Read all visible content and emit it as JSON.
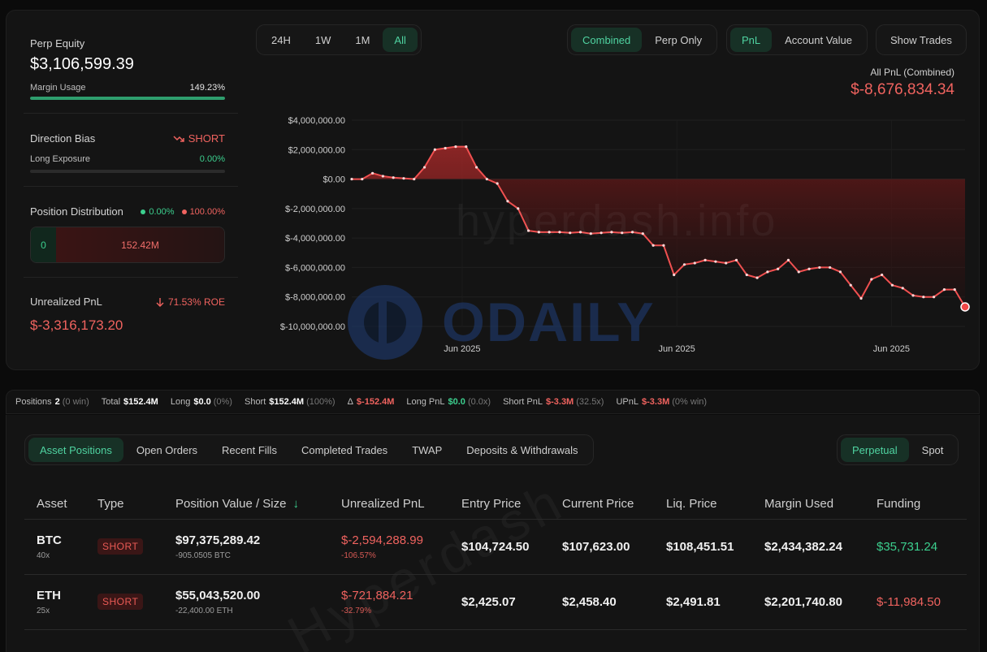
{
  "summary": {
    "perp_equity_label": "Perp Equity",
    "perp_equity_value": "$3,106,599.39",
    "margin_usage_label": "Margin Usage",
    "margin_usage_value": "149.23%",
    "margin_usage_fraction": 1.0,
    "direction_bias_label": "Direction Bias",
    "direction_bias_value": "SHORT",
    "long_exposure_label": "Long Exposure",
    "long_exposure_value": "0.00%",
    "long_exposure_fraction": 0.0,
    "position_distribution_label": "Position Distribution",
    "dist_long_pct": "0.00%",
    "dist_short_pct": "100.00%",
    "dist_long_value": "0",
    "dist_short_value": "152.42M",
    "unrealized_pnl_label": "Unrealized PnL",
    "roe_value": "71.53% ROE",
    "unrealized_pnl_value": "$-3,316,173.20"
  },
  "timeframes": [
    "24H",
    "1W",
    "1M",
    "All"
  ],
  "mode_tabs": [
    "Combined",
    "Perp Only"
  ],
  "metric_tabs": [
    "PnL",
    "Account Value"
  ],
  "show_trades_label": "Show Trades",
  "pnl_header": {
    "label": "All PnL (Combined)",
    "value": "$-8,676,834.34"
  },
  "watermarks": {
    "primary": "hyperdash.info",
    "logo_text": "ODAILY",
    "table": "Hyperdash"
  },
  "colors": {
    "accent_green": "#4fd3a1",
    "negative_red": "#f0635f",
    "positive_green": "#3ccf8e",
    "line_red": "#f05050"
  },
  "chart_data": {
    "type": "area",
    "ylim": [
      -10000000,
      4000000
    ],
    "ytick_labels": [
      "$4,000,000.00",
      "$2,000,000.00",
      "$0.00",
      "$-2,000,000.00",
      "$-4,000,000.00",
      "$-6,000,000.00",
      "$-8,000,000.00",
      "$-10,000,000.00"
    ],
    "ytick_values": [
      4000000,
      2000000,
      0,
      -2000000,
      -4000000,
      -6000000,
      -8000000,
      -10000000
    ],
    "xtick_labels": [
      "Jun 2025",
      "Jun 2025",
      "Jun 2025"
    ],
    "xtick_values": [
      0.18,
      0.53,
      0.88
    ],
    "grid": true,
    "values": [
      0,
      0,
      400000,
      200000,
      100000,
      50000,
      0,
      800000,
      2000000,
      2100000,
      2200000,
      2200000,
      800000,
      0,
      -300000,
      -1500000,
      -2000000,
      -3500000,
      -3600000,
      -3600000,
      -3600000,
      -3650000,
      -3600000,
      -3700000,
      -3650000,
      -3600000,
      -3650000,
      -3600000,
      -3700000,
      -4500000,
      -4500000,
      -6500000,
      -5800000,
      -5700000,
      -5500000,
      -5600000,
      -5700000,
      -5500000,
      -6500000,
      -6700000,
      -6300000,
      -6100000,
      -5500000,
      -6300000,
      -6100000,
      -6000000,
      -6000000,
      -6300000,
      -7200000,
      -8100000,
      -6800000,
      -6500000,
      -7200000,
      -7400000,
      -7900000,
      -8000000,
      -8000000,
      -7500000,
      -7500000,
      -8676834
    ]
  },
  "stats": {
    "positions_label": "Positions",
    "positions_value": "2",
    "positions_note": "(0 win)",
    "total_label": "Total",
    "total_value": "$152.4M",
    "long_label": "Long",
    "long_value": "$0.0",
    "long_note": "(0%)",
    "short_label": "Short",
    "short_value": "$152.4M",
    "short_note": "(100%)",
    "delta_label": "Δ",
    "delta_value": "$-152.4M",
    "long_pnl_label": "Long PnL",
    "long_pnl_value": "$0.0",
    "long_pnl_note": "(0.0x)",
    "short_pnl_label": "Short PnL",
    "short_pnl_value": "$-3.3M",
    "short_pnl_note": "(32.5x)",
    "upnl_label": "UPnL",
    "upnl_value": "$-3.3M",
    "upnl_note": "(0% win)"
  },
  "table_tabs": [
    "Asset Positions",
    "Open Orders",
    "Recent Fills",
    "Completed Trades",
    "TWAP",
    "Deposits & Withdrawals"
  ],
  "market_tabs": [
    "Perpetual",
    "Spot"
  ],
  "columns": [
    "Asset",
    "Type",
    "Position Value / Size",
    "Unrealized PnL",
    "Entry Price",
    "Current Price",
    "Liq. Price",
    "Margin Used",
    "Funding"
  ],
  "sort_indicator": "↓",
  "rows": [
    {
      "asset": "BTC",
      "leverage": "40x",
      "type": "SHORT",
      "value": "$97,375,289.42",
      "size": "-905.0505 BTC",
      "upnl": "$-2,594,288.99",
      "upnl_pct": "-106.57%",
      "entry": "$104,724.50",
      "current": "$107,623.00",
      "liq": "$108,451.51",
      "margin": "$2,434,382.24",
      "funding": "$35,731.24",
      "funding_sign": "pos"
    },
    {
      "asset": "ETH",
      "leverage": "25x",
      "type": "SHORT",
      "value": "$55,043,520.00",
      "size": "-22,400.00 ETH",
      "upnl": "$-721,884.21",
      "upnl_pct": "-32.79%",
      "entry": "$2,425.07",
      "current": "$2,458.40",
      "liq": "$2,491.81",
      "margin": "$2,201,740.80",
      "funding": "$-11,984.50",
      "funding_sign": "neg"
    }
  ]
}
